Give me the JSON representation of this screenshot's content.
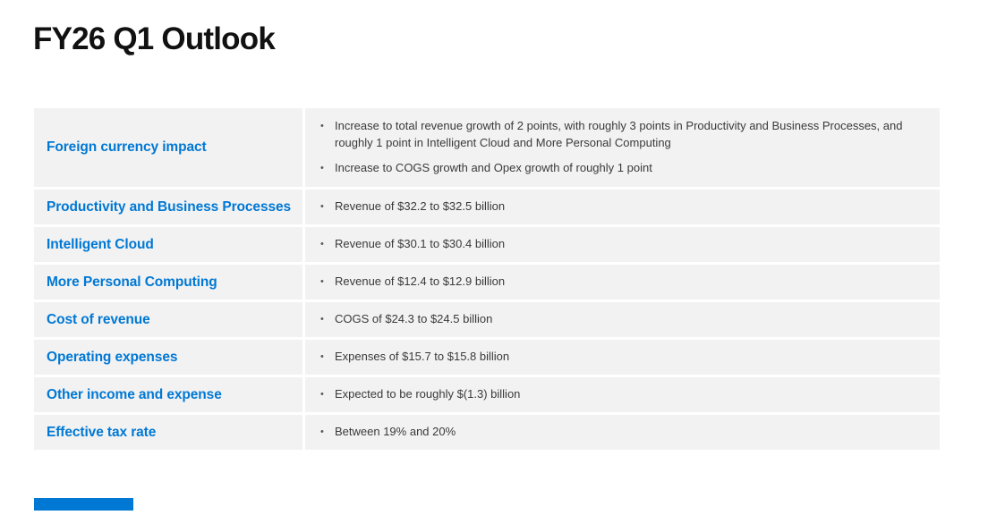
{
  "colors": {
    "accent-blue": "#0078D4",
    "row-bg": "#F2F2F2",
    "body-text": "#3A3A3A",
    "title-text": "#111111",
    "bullet-dot": "#595959"
  },
  "slide": {
    "title": "FY26 Q1 Outlook",
    "rows": [
      {
        "label": "Foreign currency impact",
        "bullets": [
          "Increase to total revenue growth of 2 points, with roughly 3 points in Productivity and Business Processes, and roughly 1 point in Intelligent Cloud and More Personal Computing",
          "Increase to COGS growth and Opex growth of roughly 1 point"
        ]
      },
      {
        "label": "Productivity and Business Processes",
        "bullets": [
          "Revenue of $32.2 to $32.5 billion"
        ]
      },
      {
        "label": "Intelligent Cloud",
        "bullets": [
          "Revenue of $30.1 to $30.4 billion"
        ]
      },
      {
        "label": "More Personal Computing",
        "bullets": [
          "Revenue of $12.4 to $12.9 billion"
        ]
      },
      {
        "label": "Cost of revenue",
        "bullets": [
          "COGS of $24.3 to $24.5 billion"
        ]
      },
      {
        "label": "Operating expenses",
        "bullets": [
          "Expenses of $15.7 to $15.8 billion"
        ]
      },
      {
        "label": "Other income and expense",
        "bullets": [
          "Expected to be roughly $(1.3) billion"
        ]
      },
      {
        "label": "Effective tax rate",
        "bullets": [
          "Between 19% and 20%"
        ]
      }
    ]
  }
}
